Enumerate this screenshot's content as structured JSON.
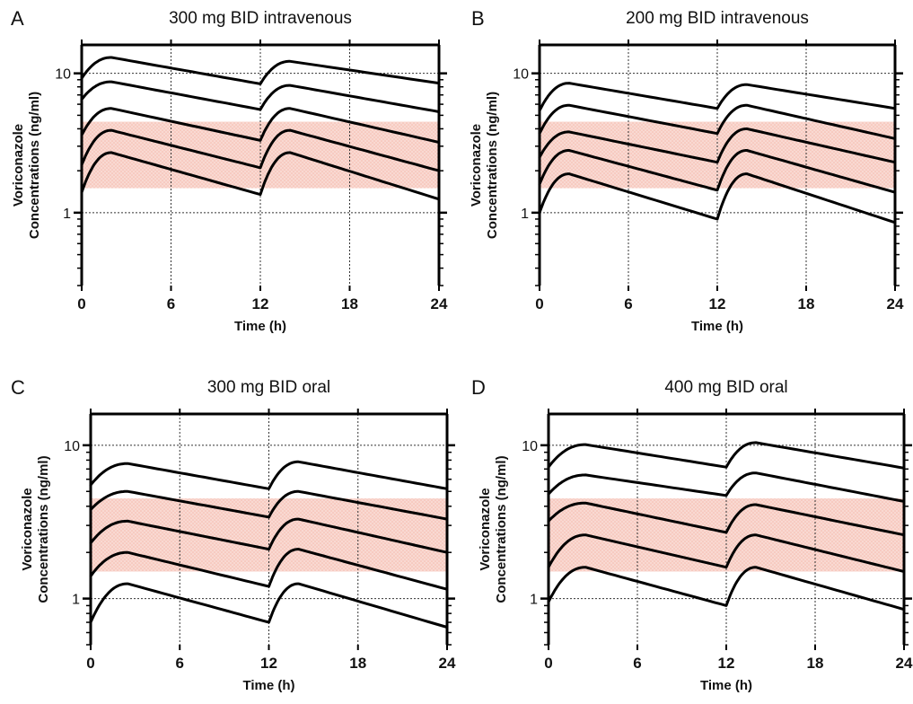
{
  "figure": {
    "x_axis_label": "Time (h)",
    "y_axis_label_line1": "Voriconazole",
    "y_axis_label_line2": "Concentrations (ng/ml)",
    "x_ticks": [
      "0",
      "6",
      "12",
      "18",
      "24"
    ],
    "y_ticks": [
      "1",
      "10"
    ]
  },
  "colors": {
    "band": "#f4b9ad",
    "curve": "#000000",
    "grid": "#333333"
  },
  "chart_data": [
    {
      "letter": "A",
      "title": "300 mg BID intravenous",
      "type": "line",
      "x_range": [
        0,
        24
      ],
      "y_range": [
        0.3,
        16
      ],
      "y_scale": "log",
      "grid": true,
      "target_band": [
        1.5,
        4.5
      ],
      "series": [
        {
          "x": [
            0,
            2,
            12,
            14,
            24
          ],
          "y": [
            9.2,
            13,
            8.4,
            12.2,
            8.5
          ]
        },
        {
          "x": [
            0,
            2,
            12,
            14,
            24
          ],
          "y": [
            6.5,
            8.7,
            5.5,
            8.2,
            5.3
          ]
        },
        {
          "x": [
            0,
            2,
            12,
            14,
            24
          ],
          "y": [
            3.6,
            5.6,
            3.3,
            5.6,
            3.2
          ]
        },
        {
          "x": [
            0,
            2,
            12,
            14,
            24
          ],
          "y": [
            2.2,
            3.9,
            2.1,
            3.9,
            2.0
          ]
        },
        {
          "x": [
            0,
            2,
            12,
            14,
            24
          ],
          "y": [
            1.4,
            2.7,
            1.35,
            2.7,
            1.25
          ]
        }
      ]
    },
    {
      "letter": "B",
      "title": "200 mg BID intravenous",
      "type": "line",
      "x_range": [
        0,
        24
      ],
      "y_range": [
        0.3,
        16
      ],
      "y_scale": "log",
      "grid": true,
      "target_band": [
        1.5,
        4.5
      ],
      "series": [
        {
          "x": [
            0,
            2,
            12,
            14,
            24
          ],
          "y": [
            5.4,
            8.5,
            5.6,
            8.3,
            5.6
          ]
        },
        {
          "x": [
            0,
            2,
            12,
            14,
            24
          ],
          "y": [
            3.7,
            5.9,
            3.7,
            5.9,
            3.4
          ]
        },
        {
          "x": [
            0,
            2,
            12,
            14,
            24
          ],
          "y": [
            2.5,
            3.8,
            2.3,
            4.0,
            2.3
          ]
        },
        {
          "x": [
            0,
            2,
            12,
            14,
            24
          ],
          "y": [
            1.6,
            2.8,
            1.45,
            2.8,
            1.4
          ]
        },
        {
          "x": [
            0,
            2,
            12,
            14,
            24
          ],
          "y": [
            1.0,
            1.9,
            0.9,
            1.9,
            0.85
          ]
        }
      ]
    },
    {
      "letter": "C",
      "title": "300 mg BID oral",
      "type": "line",
      "x_range": [
        0,
        24
      ],
      "y_range": [
        0.5,
        16
      ],
      "y_scale": "log",
      "grid": true,
      "target_band": [
        1.5,
        4.5
      ],
      "series": [
        {
          "x": [
            0,
            2.5,
            12,
            14,
            24
          ],
          "y": [
            5.5,
            7.6,
            5.2,
            7.8,
            5.2
          ]
        },
        {
          "x": [
            0,
            2.5,
            12,
            14,
            24
          ],
          "y": [
            3.8,
            5.0,
            3.4,
            5.0,
            3.3
          ]
        },
        {
          "x": [
            0,
            2.5,
            12,
            14,
            24
          ],
          "y": [
            2.3,
            3.2,
            2.1,
            3.3,
            2.0
          ]
        },
        {
          "x": [
            0,
            2.5,
            12,
            14,
            24
          ],
          "y": [
            1.4,
            2.0,
            1.2,
            2.1,
            1.15
          ]
        },
        {
          "x": [
            0,
            2.5,
            12,
            14,
            24
          ],
          "y": [
            0.7,
            1.25,
            0.7,
            1.25,
            0.65
          ]
        }
      ]
    },
    {
      "letter": "D",
      "title": "400 mg BID oral",
      "type": "line",
      "x_range": [
        0,
        24
      ],
      "y_range": [
        0.5,
        16
      ],
      "y_scale": "log",
      "grid": true,
      "target_band": [
        1.5,
        4.5
      ],
      "series": [
        {
          "x": [
            0,
            2.5,
            12,
            14,
            24
          ],
          "y": [
            7.2,
            10.1,
            7.2,
            10.4,
            7.1
          ]
        },
        {
          "x": [
            0,
            2.5,
            12,
            14,
            24
          ],
          "y": [
            4.8,
            6.4,
            4.7,
            6.6,
            4.3
          ]
        },
        {
          "x": [
            0,
            2.5,
            12,
            14,
            24
          ],
          "y": [
            3.2,
            4.2,
            2.7,
            4.1,
            2.6
          ]
        },
        {
          "x": [
            0,
            2.5,
            12,
            14,
            24
          ],
          "y": [
            1.6,
            2.6,
            1.6,
            2.6,
            1.5
          ]
        },
        {
          "x": [
            0,
            2.5,
            12,
            14,
            24
          ],
          "y": [
            0.95,
            1.6,
            0.9,
            1.6,
            0.85
          ]
        }
      ]
    }
  ]
}
